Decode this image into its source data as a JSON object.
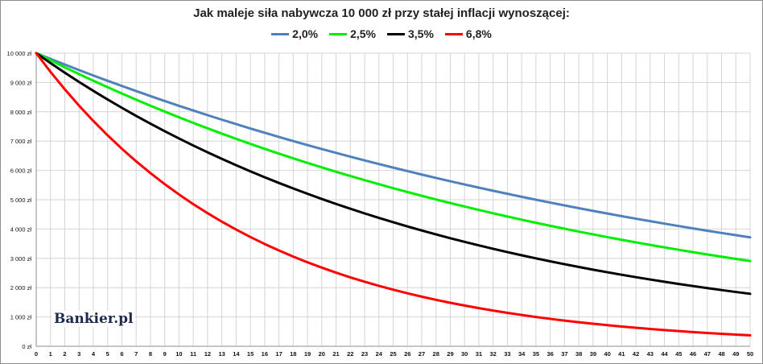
{
  "chart_data": {
    "type": "line",
    "title": "Jak maleje siła nabywcza 10 000 zł przy stałej inflacji wynoszącej:",
    "xlabel": "",
    "ylabel": "",
    "x": [
      0,
      1,
      2,
      3,
      4,
      5,
      6,
      7,
      8,
      9,
      10,
      11,
      12,
      13,
      14,
      15,
      16,
      17,
      18,
      19,
      20,
      21,
      22,
      23,
      24,
      25,
      26,
      27,
      28,
      29,
      30,
      31,
      32,
      33,
      34,
      35,
      36,
      37,
      38,
      39,
      40,
      41,
      42,
      43,
      44,
      45,
      46,
      47,
      48,
      49,
      50
    ],
    "xlim": [
      0,
      50
    ],
    "ylim": [
      0,
      10000
    ],
    "y_ticks": [
      0,
      1000,
      2000,
      3000,
      4000,
      5000,
      6000,
      7000,
      8000,
      9000,
      10000
    ],
    "y_tick_labels": [
      "0 zł",
      "1 000 zł",
      "2 000 zł",
      "3 000 zł",
      "4 000 zł",
      "5 000 zł",
      "6 000 zł",
      "7 000 zł",
      "8 000 zł",
      "9 000 zł",
      "10 000 zł"
    ],
    "grid": true,
    "legend_position": "top-center",
    "series": [
      {
        "name": "2,0%",
        "color": "#4f81bd",
        "values": [
          10000,
          9804,
          9612,
          9423,
          9238,
          9057,
          8880,
          8706,
          8535,
          8368,
          8203,
          8043,
          7885,
          7730,
          7579,
          7430,
          7284,
          7142,
          7002,
          6864,
          6730,
          6598,
          6468,
          6342,
          6217,
          6095,
          5976,
          5859,
          5744,
          5631,
          5521,
          5412,
          5306,
          5202,
          5100,
          5000,
          4902,
          4806,
          4712,
          4619,
          4529,
          4440,
          4353,
          4268,
          4184,
          4102,
          4022,
          3943,
          3865,
          3790,
          3715
        ]
      },
      {
        "name": "2,5%",
        "color": "#00ee00",
        "values": [
          10000,
          9756,
          9518,
          9286,
          9060,
          8839,
          8623,
          8413,
          8207,
          8007,
          7812,
          7621,
          7436,
          7254,
          7077,
          6905,
          6736,
          6572,
          6412,
          6255,
          6103,
          5954,
          5809,
          5667,
          5529,
          5394,
          5262,
          5134,
          5009,
          4887,
          4767,
          4651,
          4538,
          4427,
          4319,
          4214,
          4111,
          4011,
          3913,
          3817,
          3724,
          3633,
          3545,
          3458,
          3374,
          3292,
          3211,
          3133,
          3057,
          2982,
          2909
        ]
      },
      {
        "name": "3,5%",
        "color": "#000000",
        "values": [
          10000,
          9662,
          9335,
          9019,
          8714,
          8420,
          8135,
          7860,
          7594,
          7337,
          7089,
          6849,
          6618,
          6394,
          6178,
          5969,
          5767,
          5572,
          5384,
          5202,
          5026,
          4856,
          4692,
          4533,
          4380,
          4231,
          4088,
          3950,
          3817,
          3687,
          3563,
          3442,
          3326,
          3213,
          3105,
          3000,
          2898,
          2800,
          2706,
          2614,
          2526,
          2440,
          2358,
          2278,
          2201,
          2127,
          2055,
          1985,
          1918,
          1853,
          1791
        ]
      },
      {
        "name": "6,8%",
        "color": "#ff0000",
        "values": [
          10000,
          9363,
          8767,
          8209,
          7686,
          7197,
          6739,
          6310,
          5908,
          5532,
          5180,
          4850,
          4541,
          4252,
          3981,
          3728,
          3490,
          3268,
          3060,
          2865,
          2683,
          2512,
          2352,
          2202,
          2062,
          1931,
          1808,
          1693,
          1585,
          1484,
          1390,
          1301,
          1218,
          1141,
          1068,
          1000,
          936,
          877,
          821,
          769,
          720,
          674,
          631,
          591,
          553,
          518,
          485,
          454,
          425,
          398,
          373
        ]
      }
    ]
  },
  "watermark": "Bankier.pl"
}
